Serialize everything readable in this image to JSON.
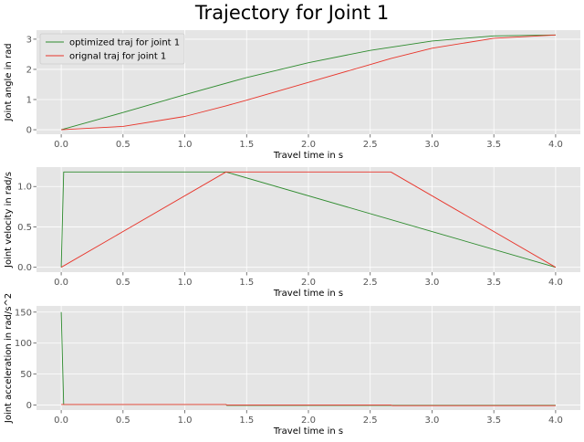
{
  "figure": {
    "title": "Trajectory for Joint 1"
  },
  "chart_data": [
    {
      "type": "line",
      "xlabel": "Travel time in s",
      "ylabel": "Joint angle in rad",
      "xlim": [
        -0.2,
        4.2
      ],
      "ylim": [
        -0.15,
        3.3
      ],
      "xticks": [
        "0.0",
        "0.5",
        "1.0",
        "1.5",
        "2.0",
        "2.5",
        "3.0",
        "3.5",
        "4.0"
      ],
      "yticks": [
        "0",
        "1",
        "2",
        "3"
      ],
      "grid": true,
      "legend": "top-left",
      "series": [
        {
          "name": "optimized traj for joint 1",
          "color": "#2e8b2e",
          "x": [
            0,
            0.5,
            1.0,
            1.5,
            2.0,
            2.5,
            3.0,
            3.5,
            4.0
          ],
          "y": [
            0.0,
            0.57,
            1.16,
            1.73,
            2.22,
            2.63,
            2.94,
            3.11,
            3.14
          ]
        },
        {
          "name": "orignal traj for joint 1",
          "color": "#e8352b",
          "x": [
            0,
            0.5,
            1.0,
            1.333,
            1.5,
            2.0,
            2.5,
            2.667,
            3.0,
            3.5,
            4.0
          ],
          "y": [
            0.0,
            0.11,
            0.44,
            0.79,
            0.98,
            1.57,
            2.16,
            2.36,
            2.7,
            3.03,
            3.14
          ]
        }
      ]
    },
    {
      "type": "line",
      "xlabel": "Travel time in s",
      "ylabel": "Joint velocity in rad/s",
      "xlim": [
        -0.2,
        4.2
      ],
      "ylim": [
        -0.06,
        1.24
      ],
      "xticks": [
        "0.0",
        "0.5",
        "1.0",
        "1.5",
        "2.0",
        "2.5",
        "3.0",
        "3.5",
        "4.0"
      ],
      "yticks": [
        "0.0",
        "0.5",
        "1.0"
      ],
      "grid": true,
      "series": [
        {
          "color": "#2e8b2e",
          "x": [
            0,
            0.02,
            1.333,
            4.0
          ],
          "y": [
            0.0,
            1.18,
            1.18,
            0.0
          ]
        },
        {
          "color": "#e8352b",
          "x": [
            0,
            1.333,
            2.667,
            4.0
          ],
          "y": [
            0.0,
            1.18,
            1.18,
            0.0
          ]
        }
      ]
    },
    {
      "type": "line",
      "xlabel": "Travel time in s",
      "ylabel": "Joint acceleration in rad/s^2",
      "xlim": [
        -0.2,
        4.2
      ],
      "ylim": [
        -8,
        160
      ],
      "xticks": [
        "0.0",
        "0.5",
        "1.0",
        "1.5",
        "2.0",
        "2.5",
        "3.0",
        "3.5",
        "4.0"
      ],
      "yticks": [
        "0",
        "50",
        "100",
        "150"
      ],
      "grid": true,
      "series": [
        {
          "color": "#2e8b2e",
          "x": [
            0,
            0.01,
            0.02,
            1.333,
            1.34,
            4.0
          ],
          "y": [
            150,
            75,
            0.9,
            0.9,
            -0.44,
            -0.44
          ]
        },
        {
          "color": "#e8352b",
          "x": [
            0,
            1.333,
            1.34,
            2.667,
            2.68,
            4.0
          ],
          "y": [
            0.88,
            0.88,
            0.0,
            0.0,
            -0.88,
            -0.88
          ]
        }
      ]
    }
  ]
}
